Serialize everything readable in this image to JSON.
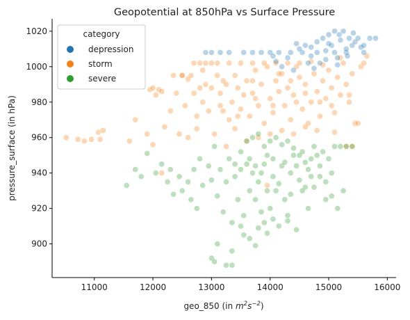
{
  "chart_data": {
    "type": "scatter",
    "title": "Geopotential at 850hPa vs Surface Pressure",
    "xlabel_main": "geo_850 (in ",
    "xlabel_unit": "m",
    "xlabel_unit_exp1": "2",
    "xlabel_unit_s": "s",
    "xlabel_unit_exp2": "−2",
    "xlabel_close": ")",
    "ylabel": "pressure_surface (in hPa)",
    "xlim": [
      10280,
      16150
    ],
    "ylim": [
      881,
      1027
    ],
    "xticks": [
      11000,
      12000,
      13000,
      14000,
      15000,
      16000
    ],
    "xtick_labels": [
      "11000",
      "12000",
      "13000",
      "14000",
      "15000",
      "16000"
    ],
    "yticks": [
      900,
      920,
      940,
      960,
      980,
      1000,
      1020
    ],
    "ytick_labels": [
      "900",
      "920",
      "940",
      "960",
      "980",
      "1000",
      "1020"
    ],
    "grid": false,
    "legend": {
      "title": "category",
      "placement": "top-left",
      "entries": [
        "depression",
        "storm",
        "severe"
      ]
    },
    "colors": {
      "depression": "#1f77b4",
      "storm": "#ff7f0e",
      "severe": "#2ca02c"
    },
    "series": [
      {
        "name": "depression",
        "points": [
          [
            12900,
            1008
          ],
          [
            13000,
            1008
          ],
          [
            13150,
            1008
          ],
          [
            13300,
            1008
          ],
          [
            13550,
            1008
          ],
          [
            13700,
            1008
          ],
          [
            13850,
            1008
          ],
          [
            14000,
            1008
          ],
          [
            14150,
            1008
          ],
          [
            14350,
            1008
          ],
          [
            14550,
            1008
          ],
          [
            14800,
            1008
          ],
          [
            15100,
            1008
          ],
          [
            15300,
            1008
          ],
          [
            15600,
            1008
          ],
          [
            14100,
            1003
          ],
          [
            14300,
            1005
          ],
          [
            14500,
            1010
          ],
          [
            14600,
            1012
          ],
          [
            14700,
            1006
          ],
          [
            14800,
            1014
          ],
          [
            14850,
            1002
          ],
          [
            14900,
            1016
          ],
          [
            14950,
            1009
          ],
          [
            15000,
            1018
          ],
          [
            15050,
            1012
          ],
          [
            15100,
            1020
          ],
          [
            15150,
            1005
          ],
          [
            15200,
            1015
          ],
          [
            15250,
            1020
          ],
          [
            15300,
            1010
          ],
          [
            15350,
            1016
          ],
          [
            15400,
            1012
          ],
          [
            15450,
            1014
          ],
          [
            15500,
            1016
          ],
          [
            15550,
            1011
          ],
          [
            15700,
            1016
          ],
          [
            15800,
            1016
          ],
          [
            14200,
            1000
          ],
          [
            14400,
            998
          ],
          [
            14650,
            1002
          ],
          [
            14750,
            999
          ],
          [
            14950,
            1004
          ],
          [
            15150,
            1001
          ],
          [
            15320,
            1006
          ],
          [
            14050,
            1006
          ],
          [
            14450,
            1013
          ],
          [
            14700,
            1011
          ],
          [
            15000,
            1013
          ],
          [
            15180,
            1018
          ],
          [
            15420,
            1019
          ],
          [
            15600,
            1012
          ]
        ]
      },
      {
        "name": "storm",
        "points": [
          [
            10520,
            960
          ],
          [
            10720,
            959
          ],
          [
            10830,
            958
          ],
          [
            10950,
            959
          ],
          [
            11070,
            963
          ],
          [
            11150,
            964
          ],
          [
            11100,
            959
          ],
          [
            11600,
            958
          ],
          [
            11700,
            970
          ],
          [
            11900,
            962
          ],
          [
            11950,
            987
          ],
          [
            12000,
            988
          ],
          [
            12050,
            984
          ],
          [
            12100,
            987
          ],
          [
            12150,
            986
          ],
          [
            12200,
            966
          ],
          [
            12300,
            975
          ],
          [
            12350,
            995
          ],
          [
            12400,
            985
          ],
          [
            12500,
            995
          ],
          [
            12550,
            978
          ],
          [
            12600,
            993
          ],
          [
            12700,
            985
          ],
          [
            12750,
            972
          ],
          [
            12800,
            988
          ],
          [
            12850,
            998
          ],
          [
            12900,
            990
          ],
          [
            12950,
            975
          ],
          [
            13000,
            1002
          ],
          [
            13100,
            995
          ],
          [
            13150,
            985
          ],
          [
            13200,
            992
          ],
          [
            13300,
            970
          ],
          [
            13350,
            980
          ],
          [
            13400,
            995
          ],
          [
            13450,
            988
          ],
          [
            13500,
            976
          ],
          [
            13550,
            984
          ],
          [
            13600,
            992
          ],
          [
            13650,
            972
          ],
          [
            13700,
            985
          ],
          [
            13750,
            998
          ],
          [
            13800,
            978
          ],
          [
            13850,
            990
          ],
          [
            13900,
            968
          ],
          [
            13950,
            1000
          ],
          [
            14000,
            982
          ],
          [
            14050,
            974
          ],
          [
            14100,
            992
          ],
          [
            14150,
            986
          ],
          [
            14200,
            996
          ],
          [
            14250,
            978
          ],
          [
            14300,
            988
          ],
          [
            14350,
            970
          ],
          [
            14400,
            984
          ],
          [
            14450,
            1000
          ],
          [
            14500,
            994
          ],
          [
            14550,
            976
          ],
          [
            14600,
            990
          ],
          [
            14650,
            968
          ],
          [
            14700,
            980
          ],
          [
            14750,
            996
          ],
          [
            14800,
            986
          ],
          [
            14850,
            972
          ],
          [
            14900,
            992
          ],
          [
            14950,
            982
          ],
          [
            15000,
            998
          ],
          [
            15050,
            988
          ],
          [
            15100,
            974
          ],
          [
            15150,
            994
          ],
          [
            15200,
            984
          ],
          [
            15250,
            1002
          ],
          [
            15300,
            990
          ],
          [
            15350,
            980
          ],
          [
            15400,
            996
          ],
          [
            15450,
            968
          ],
          [
            15500,
            968
          ],
          [
            15550,
            1000
          ],
          [
            15600,
            1002
          ],
          [
            15650,
            1006
          ],
          [
            12700,
            1002
          ],
          [
            12800,
            1002
          ],
          [
            12900,
            1002
          ],
          [
            13100,
            1002
          ],
          [
            13300,
            1002
          ],
          [
            13500,
            1002
          ],
          [
            13700,
            1002
          ],
          [
            13900,
            1002
          ],
          [
            14100,
            1002
          ],
          [
            14300,
            1002
          ],
          [
            14500,
            1002
          ],
          [
            12500,
            995
          ],
          [
            12650,
            995
          ],
          [
            13200,
            975
          ],
          [
            13400,
            965
          ],
          [
            13600,
            958
          ],
          [
            13800,
            960
          ],
          [
            14000,
            962
          ],
          [
            14200,
            964
          ],
          [
            14400,
            962
          ],
          [
            14600,
            966
          ],
          [
            14800,
            964
          ],
          [
            13050,
            962
          ],
          [
            12600,
            960
          ],
          [
            12450,
            962
          ],
          [
            13250,
            955
          ],
          [
            13950,
            933
          ],
          [
            15100,
            963
          ],
          [
            15300,
            955
          ],
          [
            15400,
            955
          ],
          [
            12150,
            940
          ],
          [
            12000,
            956
          ],
          [
            14700,
            1003
          ],
          [
            14900,
            1001
          ],
          [
            15200,
            1005
          ],
          [
            13000,
            988
          ],
          [
            13250,
            990
          ],
          [
            13700,
            992
          ],
          [
            14150,
            996
          ],
          [
            14350,
            992
          ],
          [
            14600,
            985
          ],
          [
            12850,
            980
          ],
          [
            13150,
            978
          ],
          [
            13450,
            972
          ],
          [
            13750,
            982
          ],
          [
            14050,
            978
          ],
          [
            14450,
            980
          ],
          [
            14850,
            980
          ],
          [
            15050,
            978
          ],
          [
            15350,
            984
          ],
          [
            12750,
            965
          ]
        ]
      },
      {
        "name": "severe",
        "points": [
          [
            11550,
            933
          ],
          [
            11700,
            942
          ],
          [
            11800,
            938
          ],
          [
            11900,
            951
          ],
          [
            12050,
            940
          ],
          [
            12150,
            945
          ],
          [
            12250,
            935
          ],
          [
            12300,
            942
          ],
          [
            12350,
            928
          ],
          [
            12450,
            938
          ],
          [
            12500,
            930
          ],
          [
            12600,
            935
          ],
          [
            12650,
            925
          ],
          [
            12700,
            942
          ],
          [
            12750,
            920
          ],
          [
            12800,
            948
          ],
          [
            12850,
            933
          ],
          [
            12950,
            944
          ],
          [
            13000,
            936
          ],
          [
            13050,
            955
          ],
          [
            13100,
            927
          ],
          [
            13150,
            942
          ],
          [
            13200,
            918
          ],
          [
            13250,
            935
          ],
          [
            13300,
            948
          ],
          [
            13350,
            912
          ],
          [
            13400,
            938
          ],
          [
            13450,
            925
          ],
          [
            13500,
            942
          ],
          [
            13550,
            916
          ],
          [
            13600,
            945
          ],
          [
            13650,
            930
          ],
          [
            13700,
            940
          ],
          [
            13750,
            925
          ],
          [
            13800,
            935
          ],
          [
            13850,
            918
          ],
          [
            13900,
            945
          ],
          [
            13950,
            930
          ],
          [
            14000,
            920
          ],
          [
            14050,
            948
          ],
          [
            14100,
            930
          ],
          [
            14150,
            910
          ],
          [
            14200,
            944
          ],
          [
            14250,
            925
          ],
          [
            14300,
            916
          ],
          [
            14350,
            940
          ],
          [
            14400,
            950
          ],
          [
            14450,
            908
          ],
          [
            14500,
            936
          ],
          [
            14550,
            952
          ],
          [
            14600,
            932
          ],
          [
            14650,
            942
          ],
          [
            14700,
            938
          ],
          [
            14750,
            955
          ],
          [
            14800,
            950
          ],
          [
            14850,
            944
          ],
          [
            14900,
            952
          ],
          [
            14950,
            925
          ],
          [
            15000,
            948
          ],
          [
            15050,
            940
          ],
          [
            15100,
            955
          ],
          [
            15200,
            955
          ],
          [
            15300,
            955
          ],
          [
            15400,
            955
          ],
          [
            13000,
            892
          ],
          [
            13050,
            890
          ],
          [
            13100,
            900
          ],
          [
            13250,
            888
          ],
          [
            13350,
            888
          ],
          [
            13350,
            896
          ],
          [
            13500,
            910
          ],
          [
            13550,
            905
          ],
          [
            13650,
            903
          ],
          [
            13750,
            899
          ],
          [
            13800,
            909
          ],
          [
            13900,
            912
          ],
          [
            13950,
            906
          ],
          [
            14050,
            914
          ],
          [
            14300,
            913
          ],
          [
            13600,
            958
          ],
          [
            13700,
            960
          ],
          [
            13800,
            962
          ],
          [
            13900,
            955
          ],
          [
            14000,
            958
          ],
          [
            14100,
            960
          ],
          [
            14200,
            956
          ],
          [
            14300,
            958
          ],
          [
            14400,
            954
          ],
          [
            14500,
            950
          ],
          [
            14600,
            946
          ],
          [
            14700,
            948
          ],
          [
            13400,
            945
          ],
          [
            13500,
            952
          ],
          [
            13650,
            948
          ],
          [
            13750,
            944
          ],
          [
            13850,
            940
          ],
          [
            13950,
            950
          ],
          [
            14050,
            938
          ],
          [
            14150,
            934
          ],
          [
            14250,
            946
          ],
          [
            14350,
            928
          ],
          [
            14450,
            944
          ],
          [
            14550,
            930
          ],
          [
            14650,
            920
          ],
          [
            14750,
            932
          ],
          [
            14850,
            938
          ],
          [
            14950,
            935
          ],
          [
            15050,
            927
          ],
          [
            15150,
            920
          ],
          [
            15250,
            930
          ]
        ]
      }
    ]
  }
}
